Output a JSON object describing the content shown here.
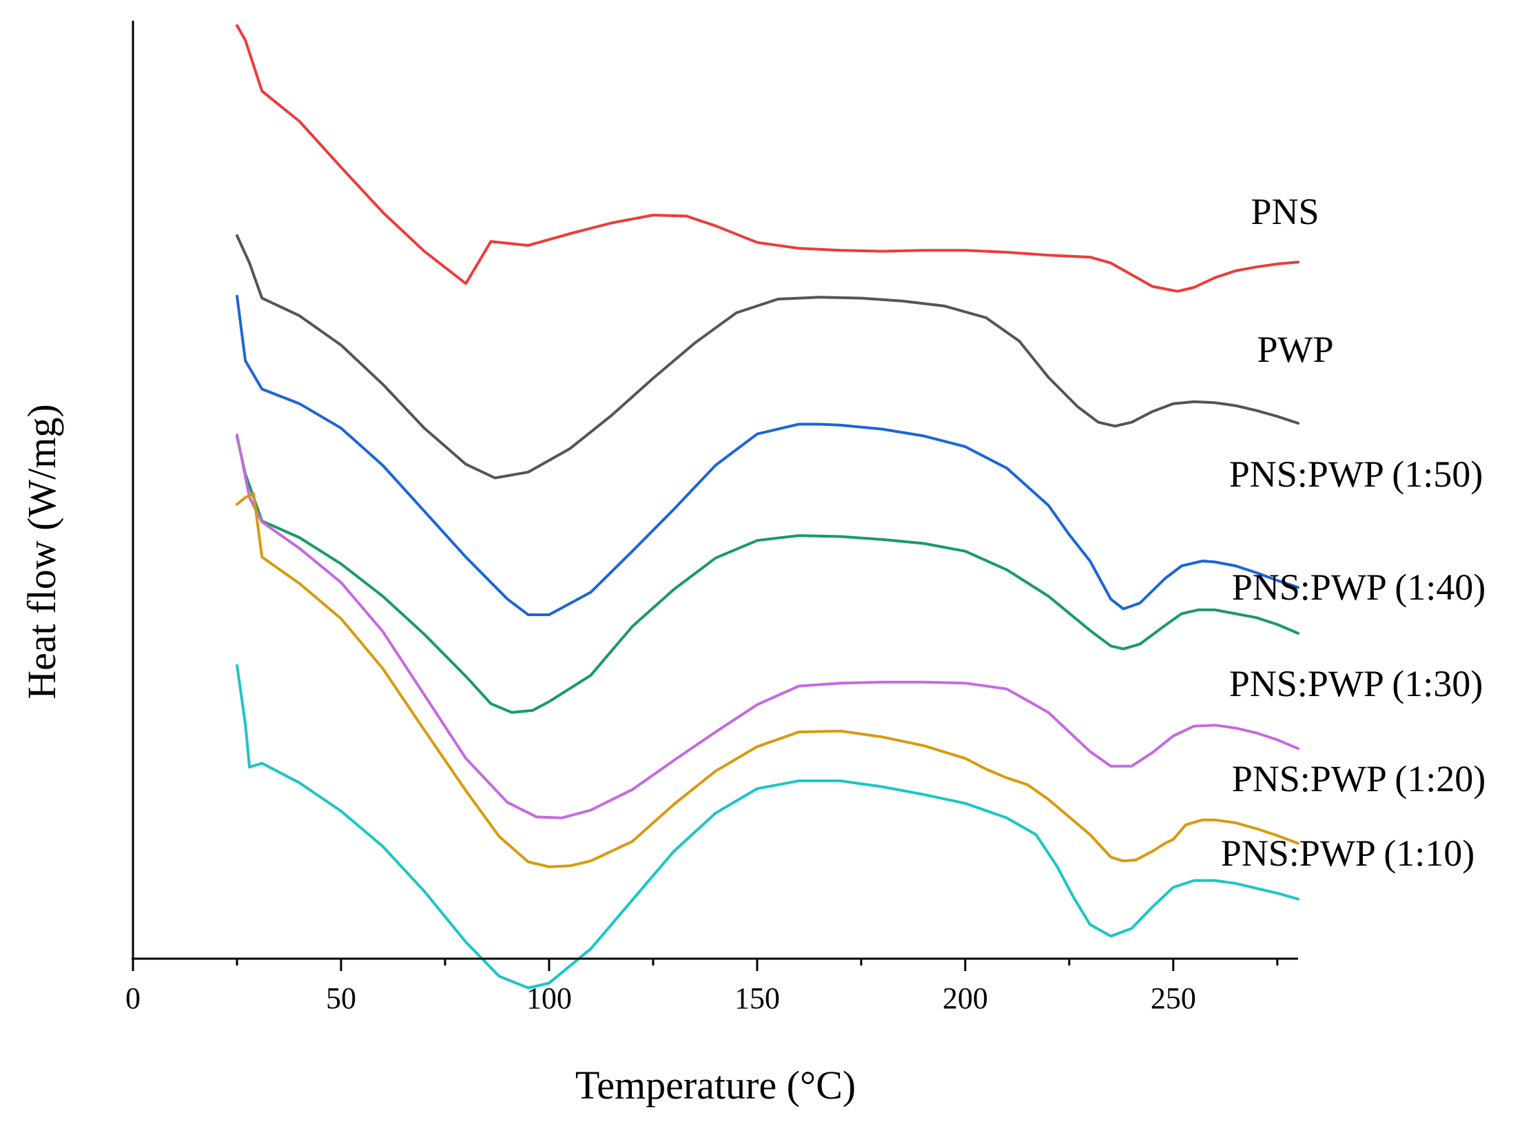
{
  "chart_data": {
    "type": "line",
    "title": "",
    "xlabel": "Temperature (°C)",
    "ylabel": "Heat flow (W/mg)",
    "xlim": [
      0,
      280
    ],
    "ylim": [
      0,
      960
    ],
    "xticks": [
      0,
      50,
      100,
      150,
      200,
      250
    ],
    "xtick_labels": [
      "0",
      "50",
      "100",
      "150",
      "200",
      "250"
    ],
    "yticks_shown": false,
    "grid": false,
    "legend": "inline labels at right end of each curve",
    "series": [
      {
        "name": "PNS",
        "color": "#ee3b3b",
        "x": [
          25,
          27,
          31,
          40,
          50,
          60,
          70,
          80,
          86,
          95,
          105,
          115,
          125,
          133,
          140,
          150,
          160,
          170,
          180,
          190,
          200,
          210,
          220,
          230,
          235,
          240,
          245,
          251,
          255,
          260,
          265,
          270,
          275,
          280
        ],
        "y": [
          955,
          940,
          888,
          857,
          810,
          764,
          724,
          691,
          734,
          730,
          742,
          753,
          761,
          760,
          750,
          733,
          727,
          725,
          724,
          725,
          725,
          723,
          720,
          718,
          712,
          700,
          688,
          683,
          687,
          697,
          704,
          708,
          711,
          713
        ]
      },
      {
        "name": "PWP",
        "color": "#555555",
        "x": [
          25,
          28,
          31,
          40,
          50,
          60,
          70,
          80,
          87,
          95,
          105,
          115,
          125,
          135,
          145,
          155,
          165,
          175,
          185,
          195,
          205,
          213,
          220,
          227,
          232,
          236,
          240,
          245,
          250,
          255,
          260,
          265,
          270,
          275,
          280
        ],
        "y": [
          740,
          712,
          676,
          658,
          628,
          588,
          543,
          506,
          492,
          498,
          522,
          556,
          594,
          630,
          661,
          675,
          677,
          676,
          673,
          668,
          656,
          632,
          595,
          565,
          549,
          545,
          549,
          560,
          568,
          570,
          569,
          566,
          561,
          555,
          548
        ]
      },
      {
        "name": "PNS:PWP (1:50)",
        "color": "#1a66d9",
        "x": [
          25,
          27,
          31,
          40,
          50,
          60,
          70,
          80,
          90,
          95,
          100,
          110,
          120,
          130,
          140,
          150,
          160,
          165,
          170,
          180,
          190,
          200,
          210,
          220,
          225,
          230,
          235,
          238,
          242,
          248,
          252,
          257,
          260,
          265,
          270,
          275,
          280
        ],
        "y": [
          678,
          612,
          583,
          568,
          543,
          505,
          458,
          411,
          368,
          352,
          352,
          375,
          417,
          460,
          505,
          537,
          547,
          547,
          546,
          542,
          535,
          524,
          502,
          464,
          434,
          407,
          368,
          358,
          364,
          389,
          402,
          407,
          406,
          402,
          395,
          387,
          380
        ]
      },
      {
        "name": "PNS:PWP (1:40)",
        "color": "#1a9b62",
        "x": [
          25,
          27,
          31,
          40,
          50,
          60,
          70,
          80,
          86,
          91,
          96,
          100,
          110,
          120,
          130,
          140,
          150,
          160,
          170,
          180,
          190,
          200,
          210,
          220,
          230,
          235,
          238,
          242,
          248,
          252,
          256,
          260,
          265,
          270,
          275,
          280
        ],
        "y": [
          534,
          496,
          448,
          431,
          404,
          371,
          332,
          289,
          261,
          252,
          254,
          263,
          290,
          340,
          378,
          410,
          428,
          433,
          432,
          429,
          425,
          417,
          398,
          371,
          336,
          320,
          317,
          322,
          341,
          353,
          357,
          357,
          353,
          349,
          342,
          333
        ]
      },
      {
        "name": "PNS:PWP (1:30)",
        "color": "#c66ae0",
        "x": [
          25,
          28,
          31,
          40,
          50,
          60,
          70,
          80,
          90,
          97,
          103,
          110,
          120,
          130,
          140,
          150,
          160,
          170,
          180,
          190,
          200,
          210,
          220,
          230,
          235,
          240,
          245,
          250,
          255,
          260,
          265,
          270,
          275,
          280
        ],
        "y": [
          536,
          472,
          447,
          420,
          385,
          335,
          270,
          205,
          160,
          145,
          144,
          152,
          173,
          203,
          232,
          260,
          279,
          282,
          283,
          283,
          282,
          276,
          252,
          212,
          197,
          197,
          211,
          228,
          238,
          239,
          236,
          231,
          224,
          215
        ]
      },
      {
        "name": "PNS:PWP (1:20)",
        "color": "#d99a0e",
        "x": [
          25,
          27,
          29,
          31,
          40,
          50,
          60,
          70,
          80,
          88,
          95,
          100,
          105,
          110,
          120,
          130,
          140,
          150,
          160,
          170,
          180,
          190,
          200,
          205,
          210,
          215,
          220,
          230,
          235,
          238,
          241,
          245,
          248,
          250,
          253,
          257,
          260,
          265,
          270,
          275,
          280
        ],
        "y": [
          465,
          472,
          476,
          411,
          384,
          348,
          297,
          234,
          172,
          125,
          99,
          94,
          95,
          100,
          120,
          158,
          192,
          217,
          232,
          233,
          227,
          218,
          205,
          194,
          185,
          178,
          163,
          127,
          104,
          100,
          101,
          110,
          118,
          122,
          137,
          142,
          142,
          139,
          133,
          126,
          118
        ]
      },
      {
        "name": "PNS:PWP (1:10)",
        "color": "#1bc6c6",
        "x": [
          25,
          27,
          28,
          31,
          40,
          50,
          60,
          70,
          80,
          88,
          95,
          100,
          110,
          120,
          130,
          140,
          150,
          160,
          170,
          180,
          190,
          200,
          210,
          217,
          222,
          226,
          230,
          235,
          240,
          245,
          250,
          255,
          260,
          265,
          270,
          275,
          280
        ],
        "y": [
          300,
          240,
          196,
          200,
          180,
          151,
          115,
          69,
          17,
          -18,
          -30,
          -25,
          10,
          60,
          110,
          149,
          174,
          182,
          182,
          176,
          168,
          159,
          144,
          127,
          95,
          63,
          35,
          23,
          31,
          53,
          73,
          80,
          80,
          77,
          72,
          67,
          61
        ]
      }
    ],
    "labels": [
      "PNS",
      "PWP",
      "PNS:PWP (1:50)",
      "PNS:PWP (1:40)",
      "PNS:PWP (1:30)",
      "PNS:PWP (1:20)",
      "PNS:PWP (1:10)"
    ]
  }
}
